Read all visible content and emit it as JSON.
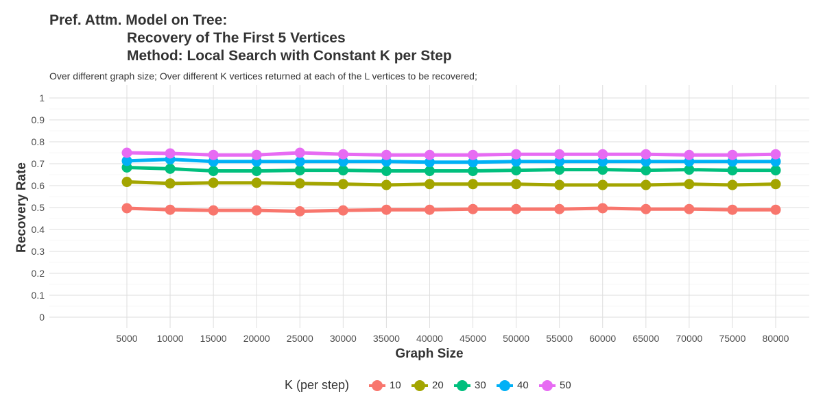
{
  "title": {
    "line1": "Pref. Attm. Model on Tree:",
    "line2": "Recovery of The First 5 Vertices",
    "line3": "Method: Local Search with Constant K per Step"
  },
  "subtitle": "Over different graph size; Over different K vertices returned at each of the L vertices to be recovered;",
  "chart_data": {
    "type": "line",
    "xlabel": "Graph Size",
    "ylabel": "Recovery Rate",
    "x": [
      5000,
      10000,
      15000,
      20000,
      25000,
      30000,
      35000,
      40000,
      45000,
      50000,
      55000,
      60000,
      65000,
      70000,
      75000,
      80000
    ],
    "x_tick_labels": [
      "5000",
      "10000",
      "15000",
      "20000",
      "25000",
      "30000",
      "35000",
      "40000",
      "45000",
      "50000",
      "55000",
      "60000",
      "65000",
      "70000",
      "75000",
      "80000"
    ],
    "yticks": [
      0,
      0.1,
      0.2,
      0.3,
      0.4,
      0.5,
      0.6,
      0.7,
      0.8,
      0.9,
      1
    ],
    "y_tick_labels": [
      "0",
      "0.1",
      "0.2",
      "0.3",
      "0.4",
      "0.5",
      "0.6",
      "0.7",
      "0.8",
      "0.9",
      "1"
    ],
    "ylim": [
      0,
      1
    ],
    "grid": true,
    "legend": {
      "title": "K (per step)",
      "placement": "bottom"
    },
    "series": [
      {
        "name": "10",
        "color": "#F8766D",
        "values": [
          0.497,
          0.49,
          0.487,
          0.487,
          0.483,
          0.487,
          0.49,
          0.49,
          0.493,
          0.493,
          0.493,
          0.497,
          0.493,
          0.493,
          0.49,
          0.49
        ]
      },
      {
        "name": "20",
        "color": "#A3A500",
        "values": [
          0.617,
          0.61,
          0.613,
          0.613,
          0.61,
          0.607,
          0.603,
          0.607,
          0.607,
          0.607,
          0.603,
          0.603,
          0.603,
          0.607,
          0.603,
          0.607
        ]
      },
      {
        "name": "30",
        "color": "#00BF7D",
        "values": [
          0.683,
          0.677,
          0.667,
          0.667,
          0.67,
          0.67,
          0.667,
          0.667,
          0.667,
          0.67,
          0.673,
          0.673,
          0.67,
          0.673,
          0.67,
          0.67
        ]
      },
      {
        "name": "40",
        "color": "#00B0F6",
        "values": [
          0.713,
          0.72,
          0.71,
          0.71,
          0.71,
          0.71,
          0.71,
          0.707,
          0.707,
          0.71,
          0.71,
          0.71,
          0.71,
          0.71,
          0.71,
          0.71
        ]
      },
      {
        "name": "50",
        "color": "#E76BF3",
        "values": [
          0.75,
          0.747,
          0.74,
          0.74,
          0.75,
          0.743,
          0.74,
          0.74,
          0.74,
          0.743,
          0.743,
          0.743,
          0.743,
          0.74,
          0.74,
          0.743
        ]
      }
    ]
  }
}
